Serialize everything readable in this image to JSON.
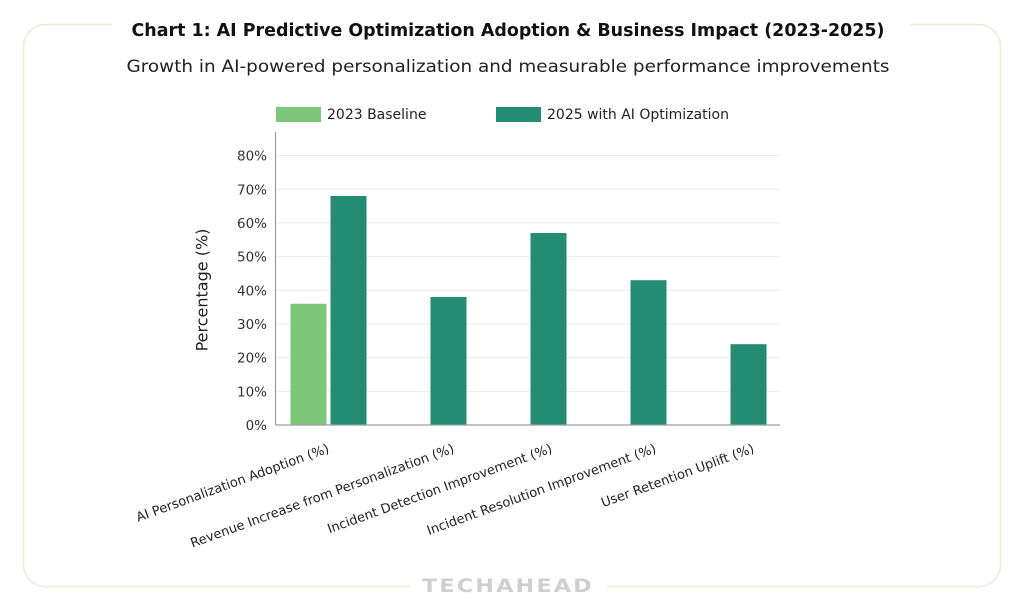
{
  "chart_data": {
    "type": "bar",
    "title": "Chart 1: AI Predictive Optimization Adoption & Business Impact (2023-2025)",
    "subtitle": "Growth in AI-powered personalization and measurable performance improvements",
    "xlabel": "",
    "ylabel": "Percentage (%)",
    "ylim": [
      0,
      87
    ],
    "yticks": [
      0,
      10,
      20,
      30,
      40,
      50,
      60,
      70,
      80
    ],
    "ytick_labels": [
      "0%",
      "10%",
      "20%",
      "30%",
      "40%",
      "50%",
      "60%",
      "70%",
      "80%"
    ],
    "grid": true,
    "legend": "top",
    "categories": [
      "AI Personalization Adoption (%)",
      "Revenue Increase from Personalization (%)",
      "Incident Detection Improvement (%)",
      "Incident Resolution Improvement (%)",
      "User Retention Uplift (%)"
    ],
    "series": [
      {
        "name": "2023 Baseline",
        "color": "#7dc67a",
        "values": [
          36,
          null,
          null,
          null,
          null
        ]
      },
      {
        "name": "2025 with AI Optimization",
        "color": "#238c73",
        "values": [
          68,
          38,
          57,
          43,
          24
        ]
      }
    ]
  },
  "watermark": "TECHAHEAD"
}
